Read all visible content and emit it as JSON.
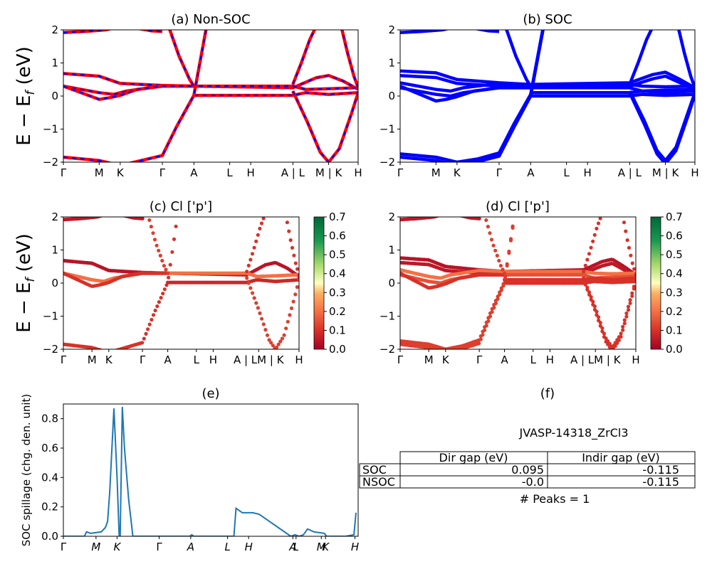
{
  "chart_data": [
    {
      "id": "a",
      "type": "line",
      "title": "(a) Non-SOC",
      "ylabel": "E − E_f (eV)",
      "xlim": [
        0,
        14
      ],
      "ylim": [
        -2,
        2
      ],
      "yticks": [
        "2",
        "1",
        "0",
        "−1",
        "−2"
      ],
      "kpath": [
        {
          "label": "Γ",
          "x": 0
        },
        {
          "label": "M",
          "x": 1.7
        },
        {
          "label": "K",
          "x": 2.7
        },
        {
          "label": "Γ",
          "x": 4.7
        },
        {
          "label": "A",
          "x": 6.2
        },
        {
          "label": "L",
          "x": 7.9
        },
        {
          "label": "H",
          "x": 8.9
        },
        {
          "label": "A | L",
          "x": 10.9
        },
        {
          "label": "M | K",
          "x": 12.6
        },
        {
          "label": "H",
          "x": 14
        }
      ],
      "bands": [
        {
          "x": [
            0,
            1,
            2,
            2.7,
            3.5,
            4.2,
            4.7
          ],
          "y": [
            1.92,
            1.95,
            2.0,
            2.1,
            2.05,
            1.97,
            1.95
          ]
        },
        {
          "x": [
            0,
            1.7,
            2.7,
            4.7,
            6.2,
            10.9,
            12.0,
            12.6,
            13.3,
            14
          ],
          "y": [
            0.68,
            0.6,
            0.38,
            0.32,
            0.3,
            0.25,
            0.55,
            0.62,
            0.45,
            0.2
          ]
        },
        {
          "x": [
            0,
            1.7,
            2.4,
            3.0,
            4.7,
            6.2,
            10.9,
            11.5,
            12.6,
            14
          ],
          "y": [
            0.3,
            0.1,
            0.05,
            0.15,
            0.3,
            0.3,
            0.3,
            0.2,
            0.22,
            0.25
          ]
        },
        {
          "x": [
            0,
            1.7,
            2.2,
            2.7,
            3.5,
            4.7,
            6.2
          ],
          "y": [
            0.3,
            -0.1,
            -0.05,
            0.02,
            0.2,
            0.3,
            0.3
          ]
        },
        {
          "x": [
            6.2,
            10.9,
            11.5,
            12.6,
            14
          ],
          "y": [
            0.02,
            0.02,
            0.1,
            0.05,
            0.1
          ]
        },
        {
          "x": [
            0,
            1.7,
            2.7,
            3.7,
            4.7,
            5.4,
            6.2,
            6.8
          ],
          "y": [
            -1.85,
            -1.95,
            -2.1,
            -1.95,
            -1.8,
            -0.9,
            0.02,
            2.1
          ]
        },
        {
          "x": [
            5.0,
            5.5,
            6.0,
            6.2
          ],
          "y": [
            2.1,
            1.2,
            0.5,
            0.3
          ]
        },
        {
          "x": [
            10.9,
            11.6,
            12.2,
            12.6,
            13.1,
            13.7,
            14
          ],
          "y": [
            0.15,
            -0.8,
            -1.7,
            -2.0,
            -1.6,
            -0.5,
            0.1
          ]
        },
        {
          "x": [
            10.9,
            11.3,
            11.7,
            12.0
          ],
          "y": [
            0.35,
            1.0,
            1.7,
            2.1
          ]
        },
        {
          "x": [
            13.2,
            13.5,
            13.8,
            14
          ],
          "y": [
            2.1,
            1.3,
            0.6,
            0.25
          ]
        }
      ],
      "series": [
        {
          "name": "",
          "color": "#ff0000",
          "dashed": false
        },
        {
          "name": "",
          "color": "#0000ff",
          "dashed": true
        }
      ]
    },
    {
      "id": "b",
      "type": "line",
      "title": "(b) SOC",
      "xlim": [
        0,
        14
      ],
      "ylim": [
        -2,
        2
      ],
      "yticks": [
        "2",
        "1",
        "0",
        "−1",
        "−2"
      ],
      "kpath": [
        {
          "label": "Γ",
          "x": 0
        },
        {
          "label": "M",
          "x": 1.7
        },
        {
          "label": "K",
          "x": 2.7
        },
        {
          "label": "Γ",
          "x": 4.7
        },
        {
          "label": "A",
          "x": 6.2
        },
        {
          "label": "L",
          "x": 7.9
        },
        {
          "label": "H",
          "x": 8.9
        },
        {
          "label": "A | L",
          "x": 10.9
        },
        {
          "label": "M | K",
          "x": 12.6
        },
        {
          "label": "H",
          "x": 14
        }
      ],
      "bands": [
        {
          "x": [
            0,
            1,
            2,
            2.7,
            3.5,
            4.2,
            4.7
          ],
          "y": [
            1.92,
            1.95,
            2.0,
            2.1,
            2.05,
            1.97,
            1.95
          ]
        },
        {
          "x": [
            0,
            1.7,
            2.7,
            4.7,
            6.2,
            10.9,
            12.0,
            12.6,
            13.3,
            14
          ],
          "y": [
            0.76,
            0.7,
            0.5,
            0.4,
            0.35,
            0.4,
            0.65,
            0.72,
            0.5,
            0.25
          ]
        },
        {
          "x": [
            0,
            1.7,
            2.7,
            4.7,
            6.2,
            10.9,
            12.0,
            12.6,
            13.3,
            14
          ],
          "y": [
            0.62,
            0.56,
            0.38,
            0.3,
            0.3,
            0.3,
            0.52,
            0.6,
            0.4,
            0.18
          ]
        },
        {
          "x": [
            0,
            1.7,
            2.4,
            3.0,
            4.7,
            6.2,
            10.9,
            11.5,
            12.6,
            14
          ],
          "y": [
            0.4,
            0.2,
            0.15,
            0.25,
            0.38,
            0.35,
            0.35,
            0.3,
            0.28,
            0.3
          ]
        },
        {
          "x": [
            0,
            1.7,
            2.4,
            3.0,
            4.7,
            6.2,
            10.9,
            11.5,
            12.6,
            14
          ],
          "y": [
            0.25,
            0.05,
            0.0,
            0.1,
            0.25,
            0.25,
            0.25,
            0.15,
            0.18,
            0.2
          ]
        },
        {
          "x": [
            0,
            1.7,
            2.2,
            2.7,
            3.5,
            4.7,
            6.2
          ],
          "y": [
            0.3,
            -0.15,
            -0.1,
            -0.02,
            0.15,
            0.25,
            0.25
          ]
        },
        {
          "x": [
            6.2,
            10.9,
            11.5,
            12.6,
            14
          ],
          "y": [
            0.1,
            0.1,
            0.15,
            0.1,
            0.15
          ]
        },
        {
          "x": [
            6.2,
            10.9,
            11.5,
            12.6,
            14
          ],
          "y": [
            0.0,
            0.0,
            0.05,
            0.02,
            0.05
          ]
        },
        {
          "x": [
            0,
            1.7,
            2.7,
            3.7,
            4.7,
            5.4,
            6.2,
            6.8
          ],
          "y": [
            -1.75,
            -1.85,
            -2.0,
            -1.9,
            -1.72,
            -0.85,
            0.05,
            2.1
          ]
        },
        {
          "x": [
            0,
            1.7,
            2.7,
            3.7,
            4.7,
            5.4,
            6.2,
            6.8
          ],
          "y": [
            -1.85,
            -1.95,
            -2.1,
            -1.98,
            -1.82,
            -0.95,
            0.0,
            2.05
          ]
        },
        {
          "x": [
            5.0,
            5.5,
            6.0,
            6.2
          ],
          "y": [
            2.1,
            1.2,
            0.5,
            0.3
          ]
        },
        {
          "x": [
            10.9,
            11.6,
            12.2,
            12.6,
            13.1,
            13.7,
            14
          ],
          "y": [
            0.15,
            -0.75,
            -1.65,
            -1.95,
            -1.55,
            -0.45,
            0.1
          ]
        },
        {
          "x": [
            10.9,
            11.6,
            12.2,
            12.6,
            13.1,
            13.7,
            14
          ],
          "y": [
            0.1,
            -0.85,
            -1.75,
            -2.05,
            -1.65,
            -0.55,
            0.05
          ]
        },
        {
          "x": [
            10.9,
            11.3,
            11.7,
            12.0
          ],
          "y": [
            0.35,
            1.0,
            1.7,
            2.1
          ]
        },
        {
          "x": [
            13.2,
            13.5,
            13.8,
            14
          ],
          "y": [
            2.1,
            1.3,
            0.6,
            0.25
          ]
        }
      ],
      "series": [
        {
          "name": "",
          "color": "#0000ff",
          "dashed": false
        }
      ]
    },
    {
      "id": "c",
      "type": "scatter",
      "title": "(c)  Cl ['p']",
      "ylabel": "E − E_f (eV)",
      "xlim": [
        0,
        14
      ],
      "ylim": [
        -2,
        2
      ],
      "yticks": [
        "2",
        "1",
        "0",
        "−1",
        "−2"
      ],
      "kpath": [
        {
          "label": "Γ",
          "x": 0
        },
        {
          "label": "M",
          "x": 1.7
        },
        {
          "label": "K",
          "x": 2.7
        },
        {
          "label": "Γ",
          "x": 4.7
        },
        {
          "label": "A",
          "x": 6.2
        },
        {
          "label": "L",
          "x": 7.9
        },
        {
          "label": "H",
          "x": 8.9
        },
        {
          "label": "A | LM | K",
          "x": 11.6
        },
        {
          "label": "H",
          "x": 14
        }
      ],
      "colorbar": {
        "min": 0.0,
        "max": 0.7,
        "ticks": [
          "0.7",
          "0.6",
          "0.5",
          "0.4",
          "0.3",
          "0.2",
          "0.1",
          "0.0"
        ]
      },
      "band_weights": [
        0.05,
        0.04,
        0.2,
        0.1,
        0.08,
        0.1,
        0.12,
        0.12,
        0.1,
        0.1
      ]
    },
    {
      "id": "d",
      "type": "scatter",
      "title": "(d) Cl ['p']",
      "xlim": [
        0,
        14
      ],
      "ylim": [
        -2,
        2
      ],
      "yticks": [
        "2",
        "1",
        "0",
        "−1",
        "−2"
      ],
      "kpath": [
        {
          "label": "Γ",
          "x": 0
        },
        {
          "label": "M",
          "x": 1.7
        },
        {
          "label": "K",
          "x": 2.7
        },
        {
          "label": "Γ",
          "x": 4.7
        },
        {
          "label": "A",
          "x": 6.2
        },
        {
          "label": "L",
          "x": 7.9
        },
        {
          "label": "H",
          "x": 8.9
        },
        {
          "label": "A | LM | K",
          "x": 11.6
        },
        {
          "label": "H",
          "x": 14
        }
      ],
      "colorbar": {
        "min": 0.0,
        "max": 0.7,
        "ticks": [
          "0.7",
          "0.6",
          "0.5",
          "0.4",
          "0.3",
          "0.2",
          "0.1",
          "0.0"
        ]
      },
      "band_weights": [
        0.05,
        0.04,
        0.05,
        0.2,
        0.15,
        0.1,
        0.1,
        0.1,
        0.12,
        0.12,
        0.12,
        0.1,
        0.1,
        0.1,
        0.1
      ]
    },
    {
      "id": "e",
      "type": "line",
      "title": "(e)",
      "ylabel": "SOC spillage (chg. den. unit)",
      "xlim": [
        0,
        14
      ],
      "ylim": [
        0,
        0.9
      ],
      "yticks": [
        {
          "label": "0.0",
          "v": 0
        },
        {
          "label": "0.2",
          "v": 0.2
        },
        {
          "label": "0.4",
          "v": 0.4
        },
        {
          "label": "0.6",
          "v": 0.6
        },
        {
          "label": "0.8",
          "v": 0.8
        }
      ],
      "kpath": [
        {
          "label": "Γ",
          "x": 0
        },
        {
          "label": "M",
          "x": 1.55
        },
        {
          "label": "K",
          "x": 2.55
        },
        {
          "label": "Γ",
          "x": 4.55
        },
        {
          "label": "A",
          "x": 6.05
        },
        {
          "label": "L",
          "x": 7.8
        },
        {
          "label": "H",
          "x": 8.8
        },
        {
          "label": "A",
          "x": 10.9
        },
        {
          "label": "L",
          "x": 11.05
        },
        {
          "label": "M",
          "x": 12.25
        },
        {
          "label": "K",
          "x": 12.45
        },
        {
          "label": "H",
          "x": 13.85
        }
      ],
      "series": [
        {
          "name": "",
          "color": "#1f77b4",
          "x": [
            0,
            1.0,
            1.1,
            1.3,
            1.8,
            2.0,
            2.1,
            2.2,
            2.4,
            2.55,
            2.65,
            2.7,
            2.8,
            2.9,
            3.1,
            3.3,
            6.0,
            6.1,
            6.2,
            8.1,
            8.2,
            8.5,
            8.8,
            9.0,
            9.3,
            10.8,
            11.0,
            11.2,
            11.4,
            11.6,
            11.9,
            12.4,
            12.5,
            13.4,
            13.8,
            13.9
          ],
          "y": [
            0,
            0,
            0.03,
            0.02,
            0.03,
            0.06,
            0.1,
            0.3,
            0.87,
            0.4,
            0,
            0,
            0.88,
            0.6,
            0.25,
            0,
            0,
            0.01,
            0,
            0,
            0.19,
            0.16,
            0.16,
            0.16,
            0.15,
            0,
            0.01,
            0,
            0.01,
            0.05,
            0.03,
            0.02,
            0,
            0,
            0.01,
            0.16
          ]
        }
      ]
    }
  ],
  "panel_f": {
    "title": "(f)",
    "subtitle": "JVASP-14318_ZrCl3",
    "table": {
      "headers": [
        "",
        "Dir gap (eV)",
        "Indir gap (eV)"
      ],
      "rows": [
        [
          "SOC",
          "0.095",
          "-0.115"
        ],
        [
          "NSOC",
          "-0.0",
          "-0.115"
        ]
      ]
    },
    "peaks_label": "# Peaks = 1"
  }
}
